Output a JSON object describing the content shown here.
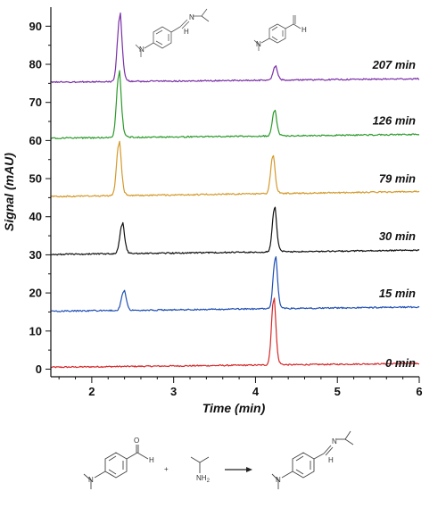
{
  "chart_data": {
    "type": "line",
    "title": "",
    "xlabel": "Time (min)",
    "ylabel": "Signal (mAU)",
    "xlim": [
      1.5,
      6
    ],
    "ylim": [
      -2,
      95
    ],
    "xticks": [
      2,
      3,
      4,
      5,
      6
    ],
    "yticks": [
      0,
      10,
      20,
      30,
      40,
      50,
      60,
      70,
      80,
      90
    ],
    "grid": false,
    "peak_widths_min": [
      0.028,
      0.026
    ],
    "series": [
      {
        "name": "0 min",
        "color": "#d62728",
        "baseline": 0.5,
        "baseline_end": 1.5,
        "peaks": [
          {
            "x": 2.38,
            "height": 0
          },
          {
            "x": 4.22,
            "height": 16.8
          }
        ],
        "label_at": 0.6
      },
      {
        "name": "15 min",
        "color": "#1f4fb4",
        "baseline": 15.2,
        "baseline_end": 16.3,
        "peaks": [
          {
            "x": 2.39,
            "height": 5.0
          },
          {
            "x": 4.24,
            "height": 13.0
          }
        ],
        "label_at": 18.8
      },
      {
        "name": "30 min",
        "color": "#111111",
        "baseline": 30.1,
        "baseline_end": 31.2,
        "peaks": [
          {
            "x": 2.37,
            "height": 7.5
          },
          {
            "x": 4.23,
            "height": 11.2
          }
        ],
        "label_at": 33.8
      },
      {
        "name": "79 min",
        "color": "#d4992a",
        "baseline": 45.3,
        "baseline_end": 46.6,
        "peaks": [
          {
            "x": 2.33,
            "height": 13.5
          },
          {
            "x": 4.21,
            "height": 9.5
          }
        ],
        "label_at": 49.0
      },
      {
        "name": "126 min",
        "color": "#2a9a2a",
        "baseline": 60.6,
        "baseline_end": 61.6,
        "peaks": [
          {
            "x": 2.33,
            "height": 16.5
          },
          {
            "x": 4.23,
            "height": 6.5
          }
        ],
        "label_at": 64.2
      },
      {
        "name": "207 min",
        "color": "#7a2fa8",
        "baseline": 75.3,
        "baseline_end": 76.2,
        "peaks": [
          {
            "x": 2.34,
            "height": 16.8
          },
          {
            "x": 4.24,
            "height": 3.5
          }
        ],
        "label_at": 78.8
      }
    ]
  },
  "scheme": {
    "atoms": {
      "aldehyde_n": "N",
      "aldehyde_o": "O",
      "aldehyde_h": "H",
      "plus_sign": "+",
      "amine_nh2": "NH",
      "amine_nh2_sub": "2",
      "imine_n": "N",
      "imine_h": "H"
    }
  }
}
